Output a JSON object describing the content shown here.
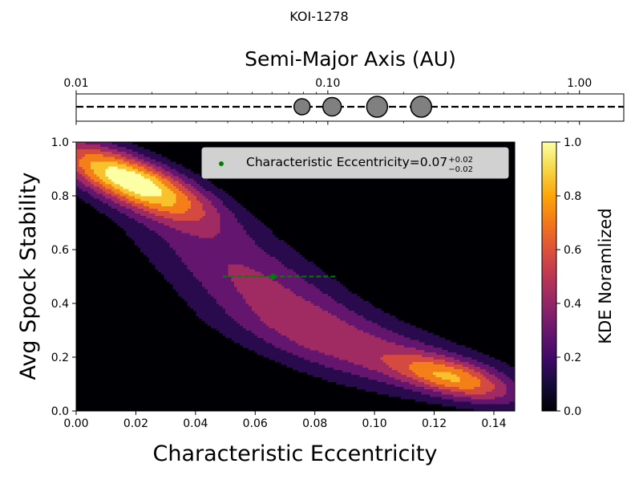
{
  "figure_title": "KOI-1278",
  "chart_data": [
    {
      "type": "scatter",
      "name": "orbit-axis",
      "xlabel": "Semi-Major Axis (AU)",
      "xscale": "log",
      "xlim": [
        0.01,
        1.5
      ],
      "ticks": [
        {
          "value": 0.01,
          "label": "0.01"
        },
        {
          "value": 0.1,
          "label": "0.10"
        },
        {
          "value": 1.0,
          "label": "1.00"
        }
      ],
      "planets": [
        {
          "a": 0.079,
          "size": "small"
        },
        {
          "a": 0.104,
          "size": "medium"
        },
        {
          "a": 0.157,
          "size": "large"
        },
        {
          "a": 0.235,
          "size": "large"
        }
      ],
      "line_style": "dashed",
      "planet_color": "#808080"
    },
    {
      "type": "heatmap",
      "name": "kde-density",
      "xlabel": "Characteristic Eccentricity",
      "ylabel": "Avg Spock Stability",
      "xlim": [
        0.0,
        0.147
      ],
      "ylim": [
        0.0,
        1.0
      ],
      "xticks": [
        "0.00",
        "0.02",
        "0.04",
        "0.06",
        "0.08",
        "0.10",
        "0.12",
        "0.14"
      ],
      "yticks": [
        "0.0",
        "0.2",
        "0.4",
        "0.6",
        "0.8",
        "1.0"
      ],
      "colormap": "inferno",
      "colorbar": {
        "label": "KDE Noramlized",
        "range": [
          0.0,
          1.0
        ],
        "ticks": [
          "0.0",
          "0.2",
          "0.4",
          "0.6",
          "0.8",
          "1.0"
        ]
      },
      "contour_levels": [
        0.0,
        0.125,
        0.25,
        0.375,
        0.5,
        0.625,
        0.75,
        0.875
      ],
      "kde_components": [
        {
          "x": 0.018,
          "y": 0.86,
          "sx": 0.018,
          "sy": 0.1,
          "w": 1.0,
          "rho": -0.75
        },
        {
          "x": 0.06,
          "y": 0.48,
          "sx": 0.03,
          "sy": 0.22,
          "w": 0.42,
          "rho": -0.8
        },
        {
          "x": 0.127,
          "y": 0.12,
          "sx": 0.014,
          "sy": 0.06,
          "w": 0.62,
          "rho": -0.6
        },
        {
          "x": 0.1,
          "y": 0.22,
          "sx": 0.035,
          "sy": 0.12,
          "w": 0.28,
          "rho": -0.7
        }
      ],
      "point": {
        "x": 0.066,
        "y": 0.5,
        "xerr_low": 0.017,
        "xerr_high": 0.021,
        "color": "#008000"
      },
      "legend": {
        "label": "Characteristic Eccentricity=0.07",
        "sup": "+0.02",
        "sub": "−0.02",
        "placement": "top-right"
      }
    }
  ]
}
